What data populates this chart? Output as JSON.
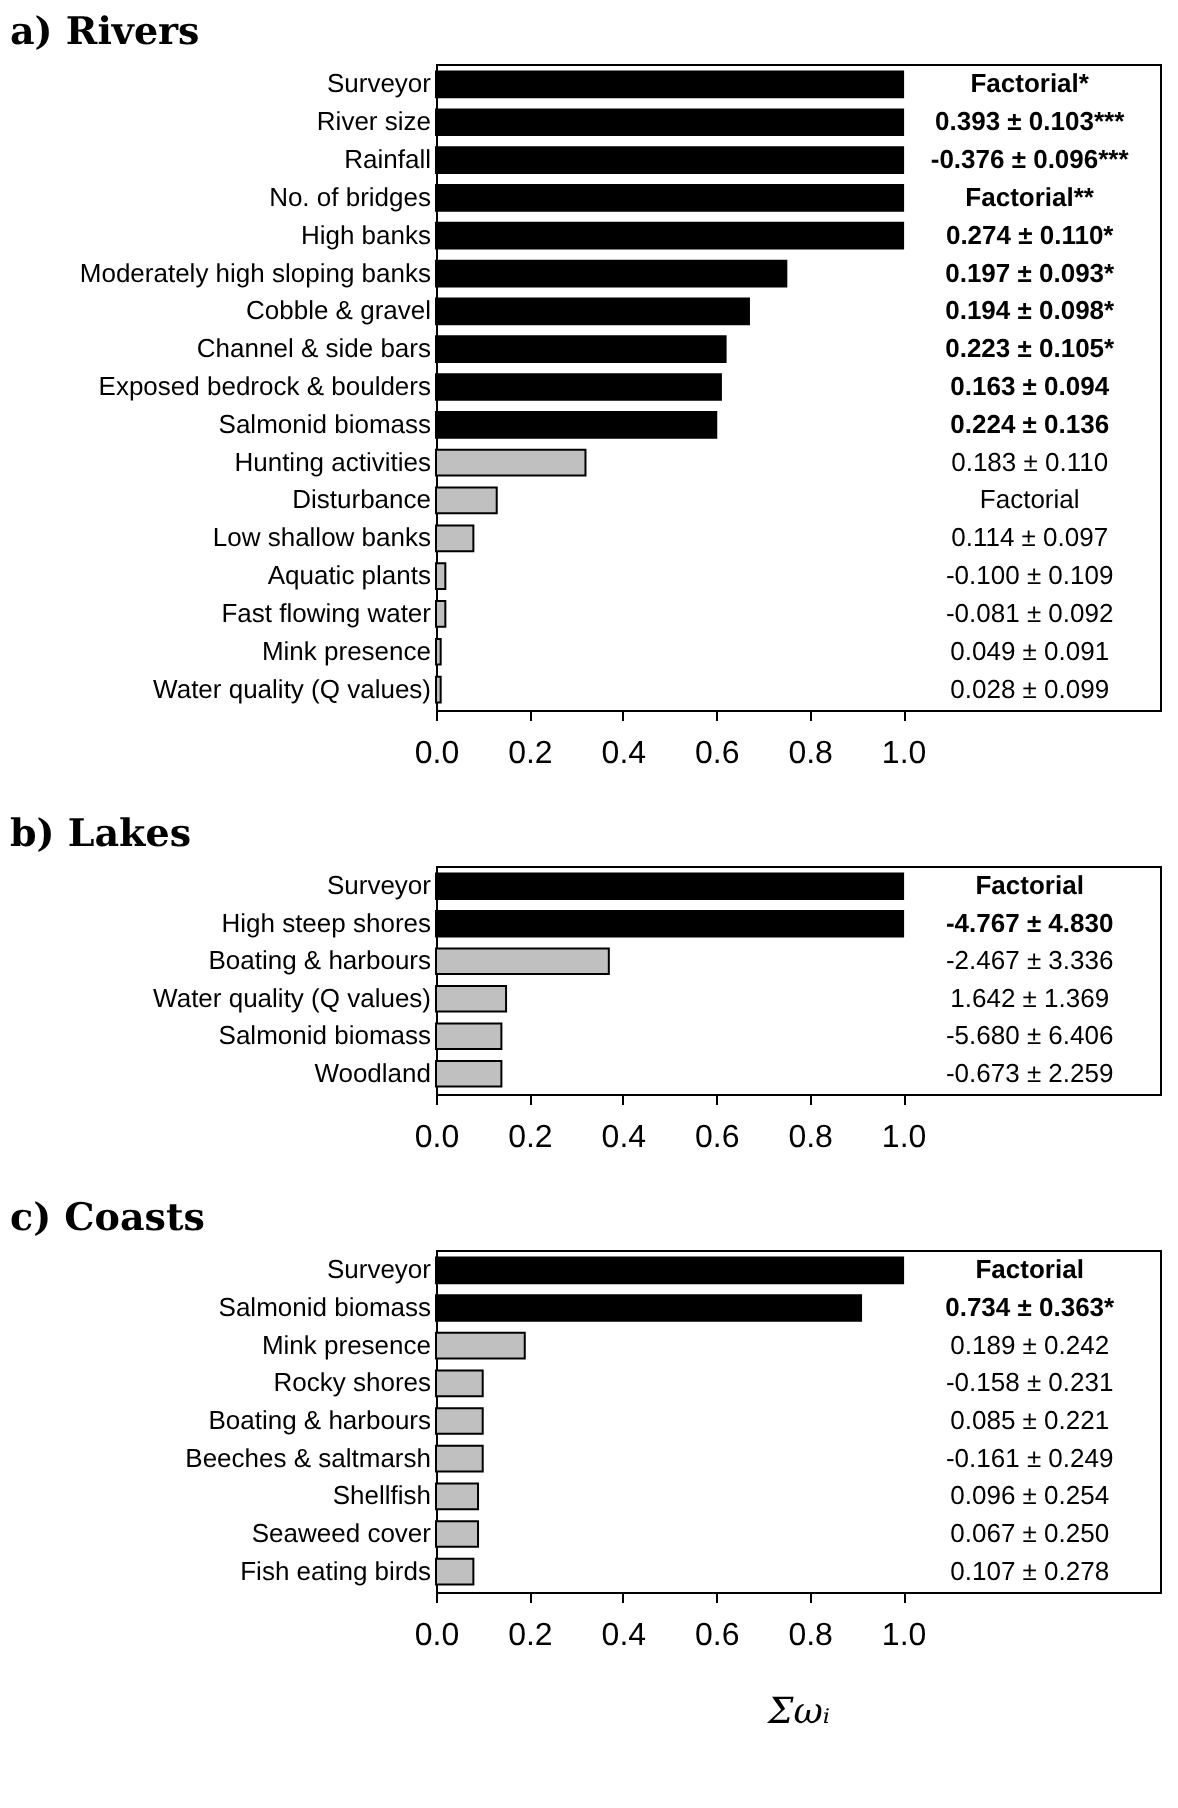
{
  "chart_data": [
    {
      "type": "bar",
      "orientation": "horizontal",
      "title": "a) Rivers",
      "categories": [
        "Surveyor",
        "River size",
        "Rainfall",
        "No. of bridges",
        "High banks",
        "Moderately high sloping banks",
        "Cobble & gravel",
        "Channel & side bars",
        "Exposed bedrock & boulders",
        "Salmonid biomass",
        "Hunting activities",
        "Disturbance",
        "Low shallow banks",
        "Aquatic plants",
        "Fast flowing water",
        "Mink presence",
        "Water quality (Q values)"
      ],
      "values": [
        1.0,
        1.0,
        1.0,
        1.0,
        1.0,
        0.75,
        0.67,
        0.62,
        0.61,
        0.6,
        0.32,
        0.13,
        0.08,
        0.02,
        0.02,
        0.01,
        0.01
      ],
      "colors": [
        "#000000",
        "#000000",
        "#000000",
        "#000000",
        "#000000",
        "#000000",
        "#000000",
        "#000000",
        "#000000",
        "#000000",
        "#c0c0c0",
        "#c0c0c0",
        "#c0c0c0",
        "#c0c0c0",
        "#c0c0c0",
        "#c0c0c0",
        "#c0c0c0"
      ],
      "xlim": [
        0,
        1.55
      ],
      "xticks": [
        {
          "value": 0,
          "label": "0.0"
        },
        {
          "value": 0.2,
          "label": "0.2"
        },
        {
          "value": 0.4,
          "label": "0.4"
        },
        {
          "value": 0.6,
          "label": "0.6"
        },
        {
          "value": 0.8,
          "label": "0.8"
        },
        {
          "value": 1,
          "label": "1.0"
        }
      ],
      "annotations": [
        "Factorial*",
        "0.393 ± 0.103***",
        "-0.376 ± 0.096***",
        "Factorial**",
        "0.274 ± 0.110*",
        "0.197 ± 0.093*",
        "0.194 ± 0.098*",
        "0.223 ± 0.105*",
        "0.163 ± 0.094",
        "0.224 ± 0.136",
        "0.183 ± 0.110",
        "Factorial",
        "0.114 ± 0.097",
        "-0.100 ± 0.109",
        "-0.081 ± 0.092",
        "0.049 ± 0.091",
        "0.028 ± 0.099"
      ]
    },
    {
      "type": "bar",
      "orientation": "horizontal",
      "title": "b) Lakes",
      "categories": [
        "Surveyor",
        "High steep shores",
        "Boating & harbours",
        "Water quality (Q values)",
        "Salmonid biomass",
        "Woodland"
      ],
      "values": [
        1.0,
        1.0,
        0.37,
        0.15,
        0.14,
        0.14
      ],
      "colors": [
        "#000000",
        "#000000",
        "#c0c0c0",
        "#c0c0c0",
        "#c0c0c0",
        "#c0c0c0"
      ],
      "xlim": [
        0,
        1.55
      ],
      "xticks": [
        {
          "value": 0,
          "label": "0.0"
        },
        {
          "value": 0.2,
          "label": "0.2"
        },
        {
          "value": 0.4,
          "label": "0.4"
        },
        {
          "value": 0.6,
          "label": "0.6"
        },
        {
          "value": 0.8,
          "label": "0.8"
        },
        {
          "value": 1,
          "label": "1.0"
        }
      ],
      "annotations": [
        "Factorial",
        "-4.767 ± 4.830",
        "-2.467 ± 3.336",
        "1.642 ± 1.369",
        "-5.680 ± 6.406",
        "-0.673 ± 2.259"
      ]
    },
    {
      "type": "bar",
      "orientation": "horizontal",
      "title": "c) Coasts",
      "xlabel": "Σωᵢ",
      "categories": [
        "Surveyor",
        "Salmonid biomass",
        "Mink presence",
        "Rocky shores",
        "Boating & harbours",
        "Beeches & saltmarsh",
        "Shellfish",
        "Seaweed cover",
        "Fish eating birds"
      ],
      "values": [
        1.0,
        0.91,
        0.19,
        0.1,
        0.1,
        0.1,
        0.09,
        0.09,
        0.08
      ],
      "colors": [
        "#000000",
        "#000000",
        "#c0c0c0",
        "#c0c0c0",
        "#c0c0c0",
        "#c0c0c0",
        "#c0c0c0",
        "#c0c0c0",
        "#c0c0c0"
      ],
      "xlim": [
        0,
        1.55
      ],
      "xticks": [
        {
          "value": 0,
          "label": "0.0"
        },
        {
          "value": 0.2,
          "label": "0.2"
        },
        {
          "value": 0.4,
          "label": "0.4"
        },
        {
          "value": 0.6,
          "label": "0.6"
        },
        {
          "value": 0.8,
          "label": "0.8"
        },
        {
          "value": 1,
          "label": "1.0"
        }
      ],
      "annotations": [
        "Factorial",
        "0.734 ± 0.363*",
        "0.189 ± 0.242",
        "-0.158 ± 0.231",
        "0.085 ± 0.221",
        "-0.161 ± 0.249",
        "0.096 ± 0.254",
        "0.067 ± 0.250",
        "0.107 ± 0.278"
      ]
    }
  ]
}
